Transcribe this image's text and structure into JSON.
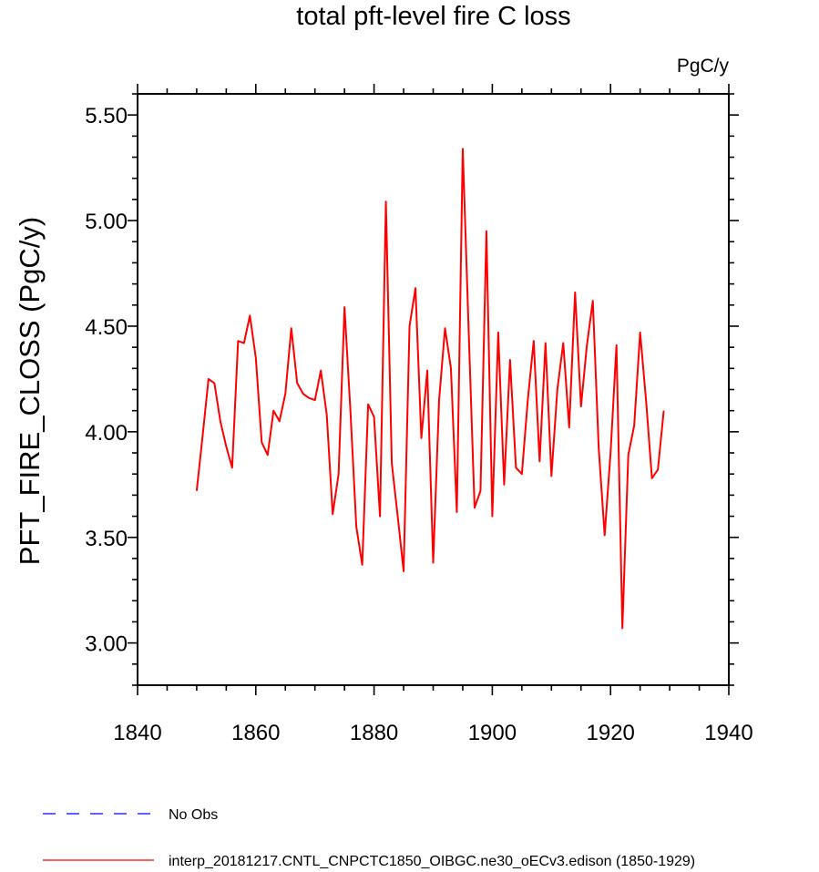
{
  "chart_data": {
    "type": "line",
    "title": "total pft-level fire C loss",
    "units_label": "PgC/y",
    "xlabel": "",
    "ylabel": "PFT_FIRE_CLOSS  (PgC/y)",
    "xlim": [
      1840,
      1940
    ],
    "ylim": [
      2.8,
      5.6
    ],
    "x_ticks": [
      1840,
      1860,
      1880,
      1900,
      1920,
      1940
    ],
    "x_tick_labels": [
      "1840",
      "1860",
      "1880",
      "1900",
      "1920",
      "1940"
    ],
    "y_ticks": [
      3.0,
      3.5,
      4.0,
      4.5,
      5.0,
      5.5
    ],
    "y_tick_labels": [
      "3.00",
      "3.50",
      "4.00",
      "4.50",
      "5.00",
      "5.50"
    ],
    "grid": false,
    "legend_position": "bottom",
    "series": [
      {
        "name": "No Obs",
        "color": "#0000ff",
        "dash": "dashed",
        "x": [],
        "y": []
      },
      {
        "name": "interp_20181217.CNTL_CNPCTC1850_OIBGC.ne30_oECv3.edison (1850-1929)",
        "color": "#ff0000",
        "dash": "solid",
        "x": [
          1850,
          1851,
          1852,
          1853,
          1854,
          1855,
          1856,
          1857,
          1858,
          1859,
          1860,
          1861,
          1862,
          1863,
          1864,
          1865,
          1866,
          1867,
          1868,
          1869,
          1870,
          1871,
          1872,
          1873,
          1874,
          1875,
          1876,
          1877,
          1878,
          1879,
          1880,
          1881,
          1882,
          1883,
          1884,
          1885,
          1886,
          1887,
          1888,
          1889,
          1890,
          1891,
          1892,
          1893,
          1894,
          1895,
          1896,
          1897,
          1898,
          1899,
          1900,
          1901,
          1902,
          1903,
          1904,
          1905,
          1906,
          1907,
          1908,
          1909,
          1910,
          1911,
          1912,
          1913,
          1914,
          1915,
          1916,
          1917,
          1918,
          1919,
          1920,
          1921,
          1922,
          1923,
          1924,
          1925,
          1926,
          1927,
          1928,
          1929
        ],
        "y": [
          3.72,
          3.98,
          4.25,
          4.23,
          4.05,
          3.93,
          3.83,
          4.43,
          4.42,
          4.55,
          4.35,
          3.95,
          3.89,
          4.1,
          4.05,
          4.18,
          4.49,
          4.23,
          4.18,
          4.16,
          4.15,
          4.29,
          4.08,
          3.61,
          3.8,
          4.59,
          4.1,
          3.55,
          3.37,
          4.13,
          4.07,
          3.6,
          5.09,
          3.85,
          3.6,
          3.34,
          4.5,
          4.68,
          3.97,
          4.29,
          3.38,
          4.15,
          4.49,
          4.3,
          3.62,
          5.34,
          4.48,
          3.64,
          3.72,
          4.95,
          3.6,
          4.47,
          3.75,
          4.34,
          3.83,
          3.8,
          4.15,
          4.43,
          3.86,
          4.42,
          3.79,
          4.2,
          4.42,
          4.02,
          4.66,
          4.12,
          4.41,
          4.62,
          3.92,
          3.51,
          3.9,
          4.41,
          3.07,
          3.89,
          4.03,
          4.47,
          4.15,
          3.78,
          3.82,
          4.1
        ]
      }
    ]
  }
}
